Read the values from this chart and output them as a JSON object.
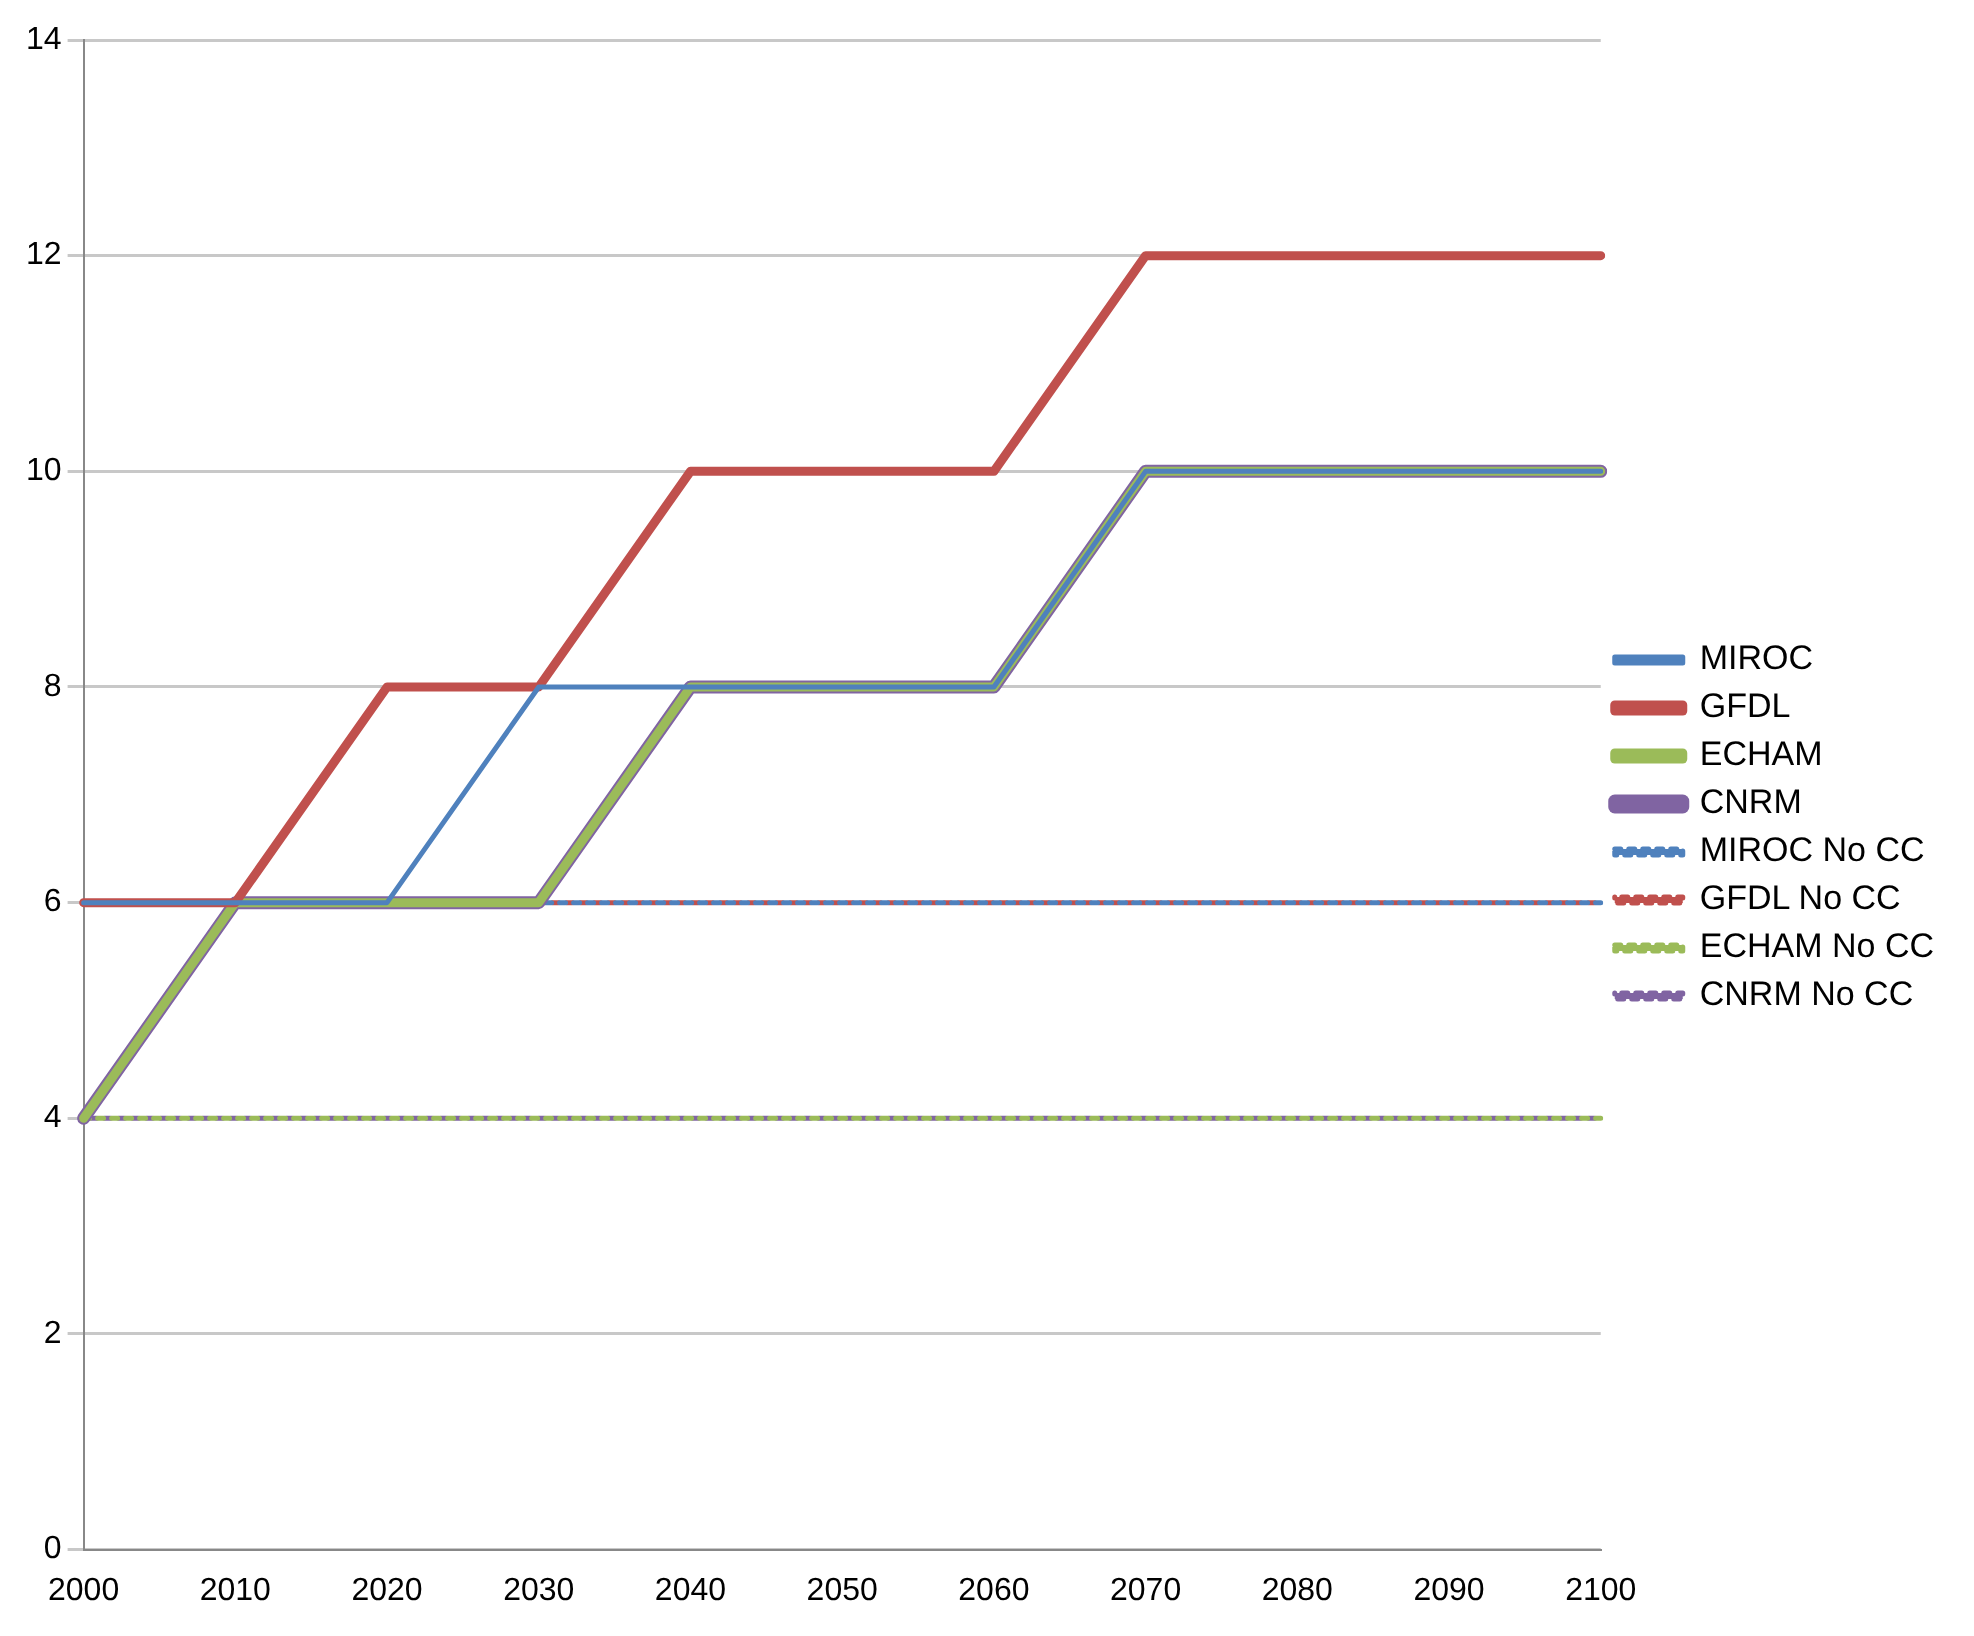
{
  "chart_data": {
    "type": "line",
    "categories": [
      "2000",
      "2010",
      "2020",
      "2030",
      "2040",
      "2050",
      "2060",
      "2070",
      "2080",
      "2090",
      "2100"
    ],
    "ylim": [
      0,
      14
    ],
    "yticks": [
      0,
      2,
      4,
      6,
      8,
      10,
      12,
      14
    ],
    "grid": "y",
    "legend": "right",
    "marker": "none",
    "series": [
      {
        "name": "MIROC",
        "color": "#4f81bd",
        "line_style": "solid",
        "values": [
          6,
          6,
          6,
          8,
          8,
          8,
          8,
          10,
          10,
          10,
          10
        ]
      },
      {
        "name": "GFDL",
        "color": "#c0504d",
        "line_style": "solid",
        "values": [
          6,
          6,
          8,
          8,
          10,
          10,
          10,
          12,
          12,
          12,
          12
        ]
      },
      {
        "name": "ECHAM",
        "color": "#9bbb59",
        "line_style": "solid",
        "values": [
          4,
          6,
          6,
          6,
          8,
          8,
          8,
          10,
          10,
          10,
          10
        ]
      },
      {
        "name": "CNRM",
        "color": "#8064a2",
        "line_style": "solid",
        "values": [
          4,
          6,
          6,
          6,
          8,
          8,
          8,
          10,
          10,
          10,
          10
        ]
      },
      {
        "name": "MIROC No CC",
        "color": "#4f81bd",
        "line_style": "dotted",
        "values": [
          6,
          6,
          6,
          6,
          6,
          6,
          6,
          6,
          6,
          6,
          6
        ]
      },
      {
        "name": "GFDL No CC",
        "color": "#c0504d",
        "line_style": "dotted",
        "values": [
          6,
          6,
          6,
          6,
          6,
          6,
          6,
          6,
          6,
          6,
          6
        ]
      },
      {
        "name": "ECHAM No CC",
        "color": "#9bbb59",
        "line_style": "dotted",
        "values": [
          4,
          4,
          4,
          4,
          4,
          4,
          4,
          4,
          4,
          4,
          4
        ]
      },
      {
        "name": "CNRM No CC",
        "color": "#8064a2",
        "line_style": "dotted",
        "values": [
          4,
          4,
          4,
          4,
          4,
          4,
          4,
          4,
          4,
          4,
          4
        ]
      }
    ]
  }
}
